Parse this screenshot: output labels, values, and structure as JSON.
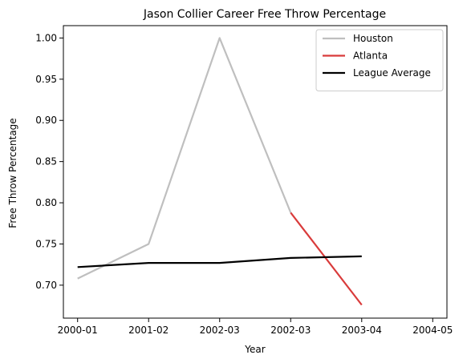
{
  "chart_data": {
    "type": "line",
    "title": "Jason Collier Career Free Throw Percentage",
    "xlabel": "Year",
    "ylabel": "Free Throw Percentage",
    "categories": [
      "2000-01",
      "2001-02",
      "2002-03",
      "2002-03",
      "2003-04",
      "2004-05"
    ],
    "ylim": [
      0.66,
      1.015
    ],
    "yticks": [
      "0.70",
      "0.75",
      "0.80",
      "0.85",
      "0.90",
      "0.95",
      "1.00"
    ],
    "grid": false,
    "legend_position": "top-right",
    "series": [
      {
        "name": "Houston",
        "color": "#bfbfbf",
        "x": [
          0,
          1,
          2,
          3
        ],
        "values": [
          0.708,
          0.75,
          1.0,
          0.788
        ]
      },
      {
        "name": "Atlanta",
        "color": "#d93b3b",
        "x": [
          3,
          4
        ],
        "values": [
          0.788,
          0.676
        ]
      },
      {
        "name": "League Average",
        "color": "#000000",
        "x": [
          0,
          1,
          2,
          3,
          4
        ],
        "values": [
          0.722,
          0.727,
          0.727,
          0.733,
          0.735
        ]
      }
    ]
  }
}
